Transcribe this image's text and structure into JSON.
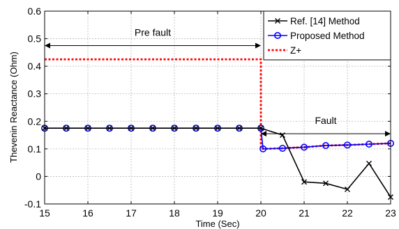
{
  "chart_data": {
    "type": "line",
    "title": "",
    "xlabel": "Time (Sec)",
    "ylabel": "Thevenin Reactance (Ohm)",
    "xlim": [
      15,
      23
    ],
    "ylim": [
      -0.1,
      0.6
    ],
    "x_ticks": [
      "15",
      "16",
      "17",
      "18",
      "19",
      "20",
      "21",
      "22",
      "23"
    ],
    "y_ticks": [
      "-0.1",
      "0",
      "0.1",
      "0.2",
      "0.3",
      "0.4",
      "0.5",
      "0.6"
    ],
    "grid": true,
    "legend_position": "top-right",
    "series": [
      {
        "name": "Ref. [14] Method",
        "color": "#000000",
        "marker": "x",
        "x": [
          15,
          15.5,
          16,
          16.5,
          17,
          17.5,
          18,
          18.5,
          19,
          19.5,
          20,
          20.5,
          21,
          21.5,
          22,
          22.5,
          23
        ],
        "y": [
          0.175,
          0.175,
          0.175,
          0.175,
          0.175,
          0.175,
          0.175,
          0.175,
          0.175,
          0.175,
          0.175,
          0.15,
          -0.02,
          -0.025,
          -0.047,
          0.047,
          -0.075
        ]
      },
      {
        "name": "Proposed Method",
        "color": "#0000ff",
        "marker": "o",
        "x": [
          15,
          15.5,
          16,
          16.5,
          17,
          17.5,
          18,
          18.5,
          19,
          19.5,
          20,
          20.05,
          20.5,
          21,
          21.5,
          22,
          22.5,
          23
        ],
        "y": [
          0.175,
          0.175,
          0.175,
          0.175,
          0.175,
          0.175,
          0.175,
          0.175,
          0.175,
          0.175,
          0.175,
          0.1,
          0.102,
          0.106,
          0.112,
          0.114,
          0.117,
          0.12
        ],
        "marker_x": [
          15,
          15.5,
          16,
          16.5,
          17,
          17.5,
          18,
          18.5,
          19,
          19.5,
          20,
          20.05,
          20.5,
          21,
          21.5,
          22,
          22.5,
          23
        ],
        "marker_y": [
          0.175,
          0.175,
          0.175,
          0.175,
          0.175,
          0.175,
          0.175,
          0.175,
          0.175,
          0.175,
          0.175,
          0.1,
          0.102,
          0.106,
          0.112,
          0.114,
          0.117,
          0.12
        ]
      },
      {
        "name": "Z+",
        "color": "#ff0000",
        "marker": "none",
        "dashed": true,
        "x": [
          15,
          20,
          20,
          20.5,
          21,
          21.5,
          22,
          22.5,
          23
        ],
        "y": [
          0.425,
          0.425,
          0.1,
          0.102,
          0.106,
          0.112,
          0.114,
          0.117,
          0.12
        ]
      }
    ],
    "annotations": [
      {
        "text": "Pre fault",
        "x_start": 15,
        "x_end": 20,
        "y": 0.475,
        "text_x": 17.5,
        "text_y": 0.51
      },
      {
        "text": "Fault",
        "x_start": 20,
        "x_end": 23,
        "y": 0.155,
        "text_x": 21.5,
        "text_y": 0.19
      }
    ]
  }
}
